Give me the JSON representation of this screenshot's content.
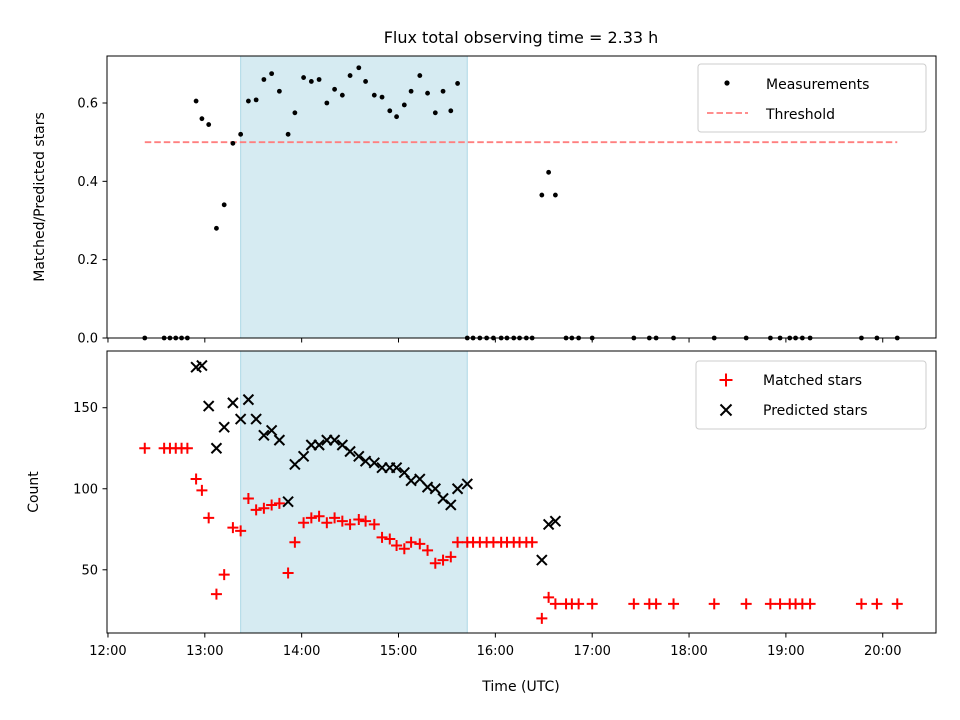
{
  "figure": {
    "title": "Flux total observing time = 2.33 h",
    "xlabel": "Time (UTC)",
    "xticks": [
      "12:00",
      "13:00",
      "14:00",
      "15:00",
      "16:00",
      "17:00",
      "18:00",
      "19:00",
      "20:00"
    ],
    "xlim_hours": [
      11.99,
      20.55
    ],
    "highlight_span_hours": [
      13.37,
      15.71
    ],
    "colors": {
      "highlight": "#add8e6",
      "matched": "#ff0000",
      "predicted": "#000000",
      "measurements": "#000000",
      "threshold": "#ff7f7f"
    }
  },
  "chart_data": [
    {
      "type": "scatter",
      "ylabel": "Matched/Predicted stars",
      "ylim": [
        0,
        0.72
      ],
      "yticks": [
        "0.0",
        "0.2",
        "0.4",
        "0.6"
      ],
      "legend_position": "upper right",
      "legend": {
        "measurements": "Measurements",
        "threshold": "Threshold"
      },
      "threshold": {
        "value": 0.5,
        "x_range": [
          12.38,
          20.15
        ]
      },
      "series": [
        {
          "name": "Measurements",
          "x": [
            12.38,
            12.58,
            12.64,
            12.7,
            12.76,
            12.82,
            12.91,
            12.97,
            13.04,
            13.12,
            13.2,
            13.29,
            13.37,
            13.45,
            13.53,
            13.61,
            13.69,
            13.77,
            13.86,
            13.93,
            14.02,
            14.1,
            14.18,
            14.26,
            14.34,
            14.42,
            14.5,
            14.59,
            14.66,
            14.75,
            14.83,
            14.91,
            14.98,
            15.06,
            15.13,
            15.22,
            15.3,
            15.38,
            15.46,
            15.54,
            15.61,
            15.71,
            15.77,
            15.84,
            15.91,
            15.98,
            16.06,
            16.12,
            16.19,
            16.25,
            16.32,
            16.38,
            16.48,
            16.55,
            16.62,
            16.73,
            16.79,
            16.86,
            17.0,
            17.43,
            17.59,
            17.66,
            17.84,
            18.26,
            18.59,
            18.84,
            18.94,
            19.04,
            19.1,
            19.17,
            19.25,
            19.78,
            19.94,
            20.15
          ],
          "y": [
            0,
            0,
            0,
            0,
            0,
            0,
            0.605,
            0.56,
            0.545,
            0.28,
            0.34,
            0.497,
            0.52,
            0.605,
            0.608,
            0.66,
            0.675,
            0.63,
            0.52,
            0.575,
            0.665,
            0.655,
            0.66,
            0.6,
            0.635,
            0.62,
            0.67,
            0.69,
            0.655,
            0.62,
            0.615,
            0.58,
            0.565,
            0.595,
            0.63,
            0.67,
            0.625,
            0.575,
            0.63,
            0.58,
            0.65,
            0,
            0,
            0,
            0,
            0,
            0,
            0,
            0,
            0,
            0,
            0,
            0.365,
            0.423,
            0.365,
            0,
            0,
            0,
            0,
            0,
            0,
            0,
            0,
            0,
            0,
            0,
            0,
            0,
            0,
            0,
            0,
            0,
            0,
            0
          ]
        }
      ]
    },
    {
      "type": "scatter",
      "ylabel": "Count",
      "ylim": [
        11,
        185
      ],
      "yticks": [
        "50",
        "100",
        "150"
      ],
      "legend_position": "upper right",
      "series": [
        {
          "name": "Matched stars",
          "x": [
            12.38,
            12.58,
            12.64,
            12.7,
            12.76,
            12.82,
            12.91,
            12.97,
            13.04,
            13.12,
            13.2,
            13.29,
            13.37,
            13.45,
            13.53,
            13.61,
            13.69,
            13.77,
            13.86,
            13.93,
            14.02,
            14.1,
            14.18,
            14.26,
            14.34,
            14.42,
            14.5,
            14.59,
            14.66,
            14.75,
            14.83,
            14.91,
            14.98,
            15.06,
            15.13,
            15.22,
            15.3,
            15.38,
            15.46,
            15.54,
            15.61,
            15.71,
            15.77,
            15.84,
            15.91,
            15.98,
            16.06,
            16.12,
            16.19,
            16.25,
            16.32,
            16.38,
            16.48,
            16.55,
            16.62,
            16.73,
            16.79,
            16.86,
            17.0,
            17.43,
            17.59,
            17.66,
            17.84,
            18.26,
            18.59,
            18.84,
            18.94,
            19.04,
            19.1,
            19.17,
            19.25,
            19.78,
            19.94,
            20.15
          ],
          "y": [
            125,
            125,
            125,
            125,
            125,
            125,
            106,
            99,
            82,
            35,
            47,
            76,
            74,
            94,
            87,
            88,
            90,
            91,
            48,
            67,
            79,
            82,
            83,
            79,
            82,
            80,
            78,
            81,
            80,
            78,
            70,
            69,
            65,
            63,
            67,
            66,
            62,
            54,
            56,
            58,
            67,
            67,
            67,
            67,
            67,
            67,
            67,
            67,
            67,
            67,
            67,
            67,
            20,
            33,
            29,
            29,
            29,
            29,
            29,
            29,
            29,
            29,
            29,
            29,
            29,
            29,
            29,
            29,
            29,
            29,
            29,
            29,
            29,
            29
          ]
        },
        {
          "name": "Predicted stars",
          "x": [
            12.91,
            12.97,
            13.04,
            13.12,
            13.2,
            13.29,
            13.37,
            13.45,
            13.53,
            13.61,
            13.69,
            13.77,
            13.86,
            13.93,
            14.02,
            14.1,
            14.18,
            14.26,
            14.34,
            14.42,
            14.5,
            14.59,
            14.66,
            14.75,
            14.83,
            14.91,
            14.98,
            15.06,
            15.13,
            15.22,
            15.3,
            15.38,
            15.46,
            15.54,
            15.61,
            15.71,
            16.48,
            16.55,
            16.62
          ],
          "y": [
            175,
            176,
            151,
            125,
            138,
            153,
            143,
            155,
            143,
            133,
            136,
            130,
            92,
            115,
            120,
            127,
            127,
            130,
            130,
            127,
            123,
            120,
            117,
            116,
            113,
            113,
            113,
            110,
            105,
            106,
            101,
            100,
            94,
            90,
            100,
            103,
            56,
            78,
            80
          ]
        }
      ]
    }
  ]
}
